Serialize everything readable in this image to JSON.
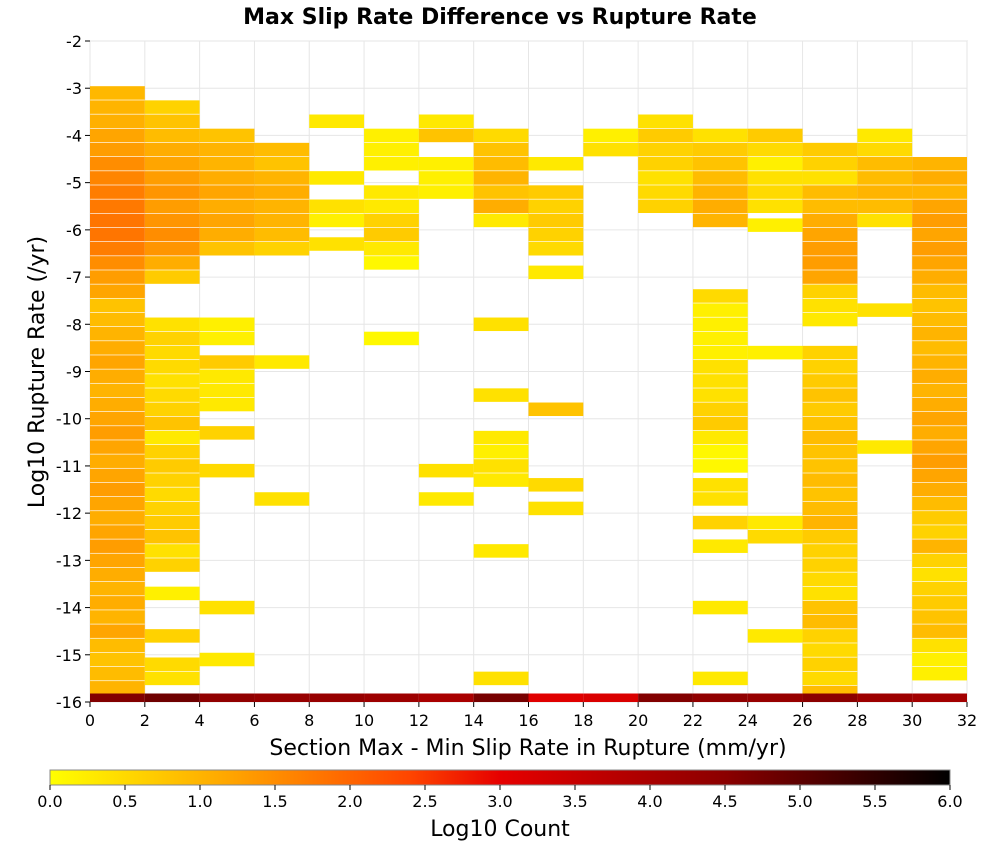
{
  "chart_data": {
    "type": "heatmap",
    "title": "Max Slip Rate Difference vs Rupture Rate",
    "xlabel": "Section Max - Min Slip Rate in Rupture (mm/yr)",
    "ylabel": "Log10 Rupture Rate (/yr)",
    "xlim": [
      0,
      32
    ],
    "ylim": [
      -16,
      -2
    ],
    "x_ticks": [
      "0",
      "2",
      "4",
      "6",
      "8",
      "10",
      "12",
      "14",
      "16",
      "18",
      "20",
      "22",
      "24",
      "26",
      "28",
      "30",
      "32"
    ],
    "y_ticks": [
      "-2",
      "-3",
      "-4",
      "-5",
      "-6",
      "-7",
      "-8",
      "-9",
      "-10",
      "-11",
      "-12",
      "-13",
      "-14",
      "-15",
      "-16"
    ],
    "x_bin_width": 2,
    "y_bin_height": 0.286,
    "colorbar": {
      "label": "Log10 Count",
      "range": [
        0,
        6
      ],
      "ticks": [
        "0.0",
        "0.5",
        "1.0",
        "1.5",
        "2.0",
        "2.5",
        "3.0",
        "3.5",
        "4.0",
        "4.5",
        "5.0",
        "5.5",
        "6.0"
      ],
      "colors": [
        "#ffff00",
        "#ffa500",
        "#ff4500",
        "#e60000",
        "#8b0000",
        "#000000"
      ]
    },
    "columns": [
      {
        "x": 1,
        "cells": [
          [
            -3.1,
            0.95
          ],
          [
            -3.4,
            1.0
          ],
          [
            -3.7,
            1.05
          ],
          [
            -4.0,
            1.2
          ],
          [
            -4.3,
            1.3
          ],
          [
            -4.6,
            1.5
          ],
          [
            -4.9,
            1.6
          ],
          [
            -5.2,
            1.7
          ],
          [
            -5.5,
            1.75
          ],
          [
            -5.8,
            1.8
          ],
          [
            -6.1,
            1.8
          ],
          [
            -6.4,
            1.7
          ],
          [
            -6.7,
            1.5
          ],
          [
            -7.0,
            1.3
          ],
          [
            -7.3,
            1.2
          ],
          [
            -7.6,
            0.8
          ],
          [
            -7.9,
            0.9
          ],
          [
            -8.2,
            1.0
          ],
          [
            -8.5,
            1.1
          ],
          [
            -8.8,
            1.2
          ],
          [
            -9.1,
            1.1
          ],
          [
            -9.4,
            1.0
          ],
          [
            -9.7,
            1.1
          ],
          [
            -10.0,
            1.2
          ],
          [
            -10.3,
            1.3
          ],
          [
            -10.6,
            1.2
          ],
          [
            -10.9,
            1.1
          ],
          [
            -11.2,
            1.2
          ],
          [
            -11.5,
            1.3
          ],
          [
            -11.8,
            1.2
          ],
          [
            -12.1,
            1.1
          ],
          [
            -12.4,
            1.2
          ],
          [
            -12.7,
            1.3
          ],
          [
            -13.0,
            1.2
          ],
          [
            -13.3,
            1.1
          ],
          [
            -13.6,
            1.0
          ],
          [
            -13.9,
            1.1
          ],
          [
            -14.2,
            1.0
          ],
          [
            -14.5,
            1.2
          ],
          [
            -14.8,
            0.9
          ],
          [
            -15.1,
            0.8
          ],
          [
            -15.4,
            0.9
          ],
          [
            -15.7,
            1.0
          ]
        ]
      },
      {
        "x": 3,
        "cells": [
          [
            -3.4,
            0.6
          ],
          [
            -3.7,
            0.8
          ],
          [
            -4.0,
            0.9
          ],
          [
            -4.3,
            1.1
          ],
          [
            -4.6,
            1.2
          ],
          [
            -4.9,
            1.3
          ],
          [
            -5.2,
            1.4
          ],
          [
            -5.5,
            1.3
          ],
          [
            -5.8,
            1.4
          ],
          [
            -6.1,
            1.5
          ],
          [
            -6.4,
            1.4
          ],
          [
            -6.7,
            1.1
          ],
          [
            -7.0,
            0.7
          ],
          [
            -8.0,
            0.4
          ],
          [
            -8.3,
            0.6
          ],
          [
            -8.6,
            0.5
          ],
          [
            -8.9,
            0.5
          ],
          [
            -9.2,
            0.4
          ],
          [
            -9.5,
            0.5
          ],
          [
            -9.8,
            0.6
          ],
          [
            -10.1,
            0.8
          ],
          [
            -10.4,
            0.3
          ],
          [
            -10.7,
            0.6
          ],
          [
            -11.0,
            0.7
          ],
          [
            -11.3,
            0.6
          ],
          [
            -11.6,
            0.5
          ],
          [
            -11.9,
            0.6
          ],
          [
            -12.2,
            0.7
          ],
          [
            -12.5,
            0.8
          ],
          [
            -12.8,
            0.4
          ],
          [
            -13.1,
            0.6
          ],
          [
            -13.7,
            0.2
          ],
          [
            -14.6,
            0.6
          ],
          [
            -15.2,
            0.5
          ],
          [
            -15.5,
            0.4
          ]
        ]
      },
      {
        "x": 5,
        "cells": [
          [
            -4.0,
            0.8
          ],
          [
            -4.3,
            1.0
          ],
          [
            -4.6,
            1.0
          ],
          [
            -4.9,
            1.1
          ],
          [
            -5.2,
            1.2
          ],
          [
            -5.5,
            1.1
          ],
          [
            -5.8,
            1.2
          ],
          [
            -6.1,
            1.1
          ],
          [
            -6.4,
            0.8
          ],
          [
            -8.0,
            0.2
          ],
          [
            -8.3,
            0.2
          ],
          [
            -8.8,
            0.7
          ],
          [
            -9.1,
            0.3
          ],
          [
            -9.4,
            0.3
          ],
          [
            -9.7,
            0.3
          ],
          [
            -10.3,
            0.6
          ],
          [
            -11.1,
            0.5
          ],
          [
            -14.0,
            0.4
          ],
          [
            -15.1,
            0.3
          ]
        ]
      },
      {
        "x": 7,
        "cells": [
          [
            -4.3,
            0.9
          ],
          [
            -4.6,
            0.8
          ],
          [
            -4.9,
            1.0
          ],
          [
            -5.2,
            1.1
          ],
          [
            -5.5,
            1.0
          ],
          [
            -5.8,
            1.0
          ],
          [
            -6.1,
            0.9
          ],
          [
            -6.4,
            0.6
          ],
          [
            -8.8,
            0.3
          ],
          [
            -11.7,
            0.4
          ]
        ]
      },
      {
        "x": 9,
        "cells": [
          [
            -3.7,
            0.3
          ],
          [
            -4.9,
            0.3
          ],
          [
            -5.5,
            0.4
          ],
          [
            -5.8,
            0.2
          ],
          [
            -6.3,
            0.4
          ]
        ]
      },
      {
        "x": 11,
        "cells": [
          [
            -4.0,
            0.2
          ],
          [
            -4.3,
            0.2
          ],
          [
            -4.6,
            0.2
          ],
          [
            -5.2,
            0.3
          ],
          [
            -5.5,
            0.3
          ],
          [
            -5.8,
            0.6
          ],
          [
            -6.1,
            0.7
          ],
          [
            -6.4,
            0.3
          ],
          [
            -6.7,
            0.1
          ],
          [
            -8.3,
            0.1
          ]
        ]
      },
      {
        "x": 13,
        "cells": [
          [
            -3.7,
            0.3
          ],
          [
            -4.0,
            0.8
          ],
          [
            -4.6,
            0.2
          ],
          [
            -4.9,
            0.2
          ],
          [
            -5.2,
            0.2
          ],
          [
            -11.1,
            0.4
          ],
          [
            -11.7,
            0.3
          ]
        ]
      },
      {
        "x": 15,
        "cells": [
          [
            -4.0,
            0.5
          ],
          [
            -4.3,
            0.8
          ],
          [
            -4.6,
            0.9
          ],
          [
            -4.9,
            1.0
          ],
          [
            -5.2,
            0.8
          ],
          [
            -5.5,
            1.1
          ],
          [
            -5.8,
            0.3
          ],
          [
            -8.0,
            0.4
          ],
          [
            -9.5,
            0.4
          ],
          [
            -10.4,
            0.3
          ],
          [
            -10.7,
            0.2
          ],
          [
            -11.0,
            0.4
          ],
          [
            -11.3,
            0.3
          ],
          [
            -12.8,
            0.3
          ],
          [
            -15.5,
            0.4
          ]
        ]
      },
      {
        "x": 17,
        "cells": [
          [
            -4.6,
            0.3
          ],
          [
            -5.2,
            0.7
          ],
          [
            -5.5,
            0.6
          ],
          [
            -5.8,
            0.7
          ],
          [
            -6.1,
            0.6
          ],
          [
            -6.4,
            0.5
          ],
          [
            -6.9,
            0.3
          ],
          [
            -9.8,
            0.8
          ],
          [
            -11.4,
            0.5
          ],
          [
            -11.9,
            0.4
          ]
        ]
      },
      {
        "x": 19,
        "cells": [
          [
            -4.0,
            0.2
          ],
          [
            -4.3,
            0.4
          ]
        ]
      },
      {
        "x": 21,
        "cells": [
          [
            -3.7,
            0.4
          ],
          [
            -4.0,
            0.7
          ],
          [
            -4.3,
            0.6
          ],
          [
            -4.6,
            0.6
          ],
          [
            -4.9,
            0.4
          ],
          [
            -5.2,
            0.5
          ],
          [
            -5.5,
            0.6
          ]
        ]
      },
      {
        "x": 23,
        "cells": [
          [
            -4.0,
            0.4
          ],
          [
            -4.3,
            0.7
          ],
          [
            -4.6,
            0.8
          ],
          [
            -4.9,
            0.9
          ],
          [
            -5.2,
            1.0
          ],
          [
            -5.5,
            1.1
          ],
          [
            -5.8,
            1.0
          ],
          [
            -7.4,
            0.5
          ],
          [
            -7.7,
            0.2
          ],
          [
            -8.0,
            0.2
          ],
          [
            -8.3,
            0.2
          ],
          [
            -8.6,
            0.2
          ],
          [
            -8.9,
            0.4
          ],
          [
            -9.2,
            0.4
          ],
          [
            -9.5,
            0.4
          ],
          [
            -9.8,
            0.6
          ],
          [
            -10.1,
            0.7
          ],
          [
            -10.4,
            0.3
          ],
          [
            -10.7,
            0.1
          ],
          [
            -11.0,
            0.1
          ],
          [
            -11.4,
            0.4
          ],
          [
            -11.7,
            0.4
          ],
          [
            -12.2,
            0.6
          ],
          [
            -12.7,
            0.3
          ],
          [
            -14.0,
            0.3
          ],
          [
            -15.5,
            0.3
          ]
        ]
      },
      {
        "x": 25,
        "cells": [
          [
            -4.0,
            0.7
          ],
          [
            -4.3,
            0.5
          ],
          [
            -4.6,
            0.2
          ],
          [
            -4.9,
            0.4
          ],
          [
            -5.2,
            0.5
          ],
          [
            -5.5,
            0.4
          ],
          [
            -5.9,
            0.2
          ],
          [
            -8.6,
            0.2
          ],
          [
            -12.2,
            0.3
          ],
          [
            -12.5,
            0.5
          ],
          [
            -14.6,
            0.3
          ]
        ]
      },
      {
        "x": 27,
        "cells": [
          [
            -4.3,
            0.7
          ],
          [
            -4.6,
            0.6
          ],
          [
            -4.9,
            0.4
          ],
          [
            -5.2,
            0.9
          ],
          [
            -5.5,
            0.9
          ],
          [
            -5.8,
            1.1
          ],
          [
            -6.1,
            1.2
          ],
          [
            -6.4,
            1.3
          ],
          [
            -6.7,
            1.3
          ],
          [
            -7.0,
            1.2
          ],
          [
            -7.3,
            0.6
          ],
          [
            -7.6,
            0.4
          ],
          [
            -7.9,
            0.3
          ],
          [
            -8.6,
            0.6
          ],
          [
            -8.9,
            0.6
          ],
          [
            -9.2,
            0.7
          ],
          [
            -9.5,
            0.8
          ],
          [
            -9.8,
            0.7
          ],
          [
            -10.1,
            0.8
          ],
          [
            -10.4,
            0.9
          ],
          [
            -10.7,
            0.8
          ],
          [
            -11.0,
            0.8
          ],
          [
            -11.3,
            0.9
          ],
          [
            -11.6,
            0.8
          ],
          [
            -11.9,
            0.9
          ],
          [
            -12.2,
            1.0
          ],
          [
            -12.5,
            0.7
          ],
          [
            -12.8,
            0.6
          ],
          [
            -13.1,
            0.6
          ],
          [
            -13.4,
            0.5
          ],
          [
            -13.7,
            0.4
          ],
          [
            -14.0,
            0.8
          ],
          [
            -14.3,
            0.9
          ],
          [
            -14.6,
            0.6
          ],
          [
            -14.9,
            0.5
          ],
          [
            -15.2,
            0.6
          ],
          [
            -15.5,
            0.5
          ],
          [
            -15.8,
            0.9
          ]
        ]
      },
      {
        "x": 29,
        "cells": [
          [
            -4.0,
            0.3
          ],
          [
            -4.3,
            0.5
          ],
          [
            -4.6,
            0.9
          ],
          [
            -4.9,
            0.9
          ],
          [
            -5.2,
            1.0
          ],
          [
            -5.5,
            0.9
          ],
          [
            -5.8,
            0.4
          ],
          [
            -7.7,
            0.4
          ],
          [
            -10.6,
            0.3
          ]
        ]
      },
      {
        "x": 31,
        "cells": [
          [
            -4.6,
            1.0
          ],
          [
            -4.9,
            1.1
          ],
          [
            -5.2,
            1.0
          ],
          [
            -5.5,
            1.2
          ],
          [
            -5.8,
            1.3
          ],
          [
            -6.1,
            1.2
          ],
          [
            -6.4,
            1.3
          ],
          [
            -6.7,
            1.2
          ],
          [
            -7.0,
            1.1
          ],
          [
            -7.3,
            0.9
          ],
          [
            -7.6,
            0.8
          ],
          [
            -7.9,
            0.9
          ],
          [
            -8.2,
            1.0
          ],
          [
            -8.5,
            0.9
          ],
          [
            -8.8,
            1.0
          ],
          [
            -9.1,
            1.1
          ],
          [
            -9.4,
            1.0
          ],
          [
            -9.7,
            1.1
          ],
          [
            -10.0,
            1.2
          ],
          [
            -10.3,
            1.1
          ],
          [
            -10.6,
            1.2
          ],
          [
            -10.9,
            1.3
          ],
          [
            -11.2,
            1.2
          ],
          [
            -11.5,
            1.1
          ],
          [
            -11.8,
            0.9
          ],
          [
            -12.1,
            0.7
          ],
          [
            -12.4,
            0.6
          ],
          [
            -12.7,
            1.0
          ],
          [
            -13.0,
            0.6
          ],
          [
            -13.3,
            0.4
          ],
          [
            -13.6,
            0.6
          ],
          [
            -13.9,
            0.7
          ],
          [
            -14.2,
            0.8
          ],
          [
            -14.5,
            0.9
          ],
          [
            -14.8,
            0.4
          ],
          [
            -15.1,
            0.2
          ],
          [
            -15.4,
            0.2
          ]
        ]
      }
    ],
    "bottom_row": {
      "y": -15.9,
      "values": [
        4.6,
        4.8,
        4.4,
        4.3,
        4.3,
        4.2,
        4.0,
        4.7,
        3.1,
        3.2,
        4.6,
        4.4,
        4.3,
        4.5,
        4.2,
        4.1
      ]
    }
  }
}
